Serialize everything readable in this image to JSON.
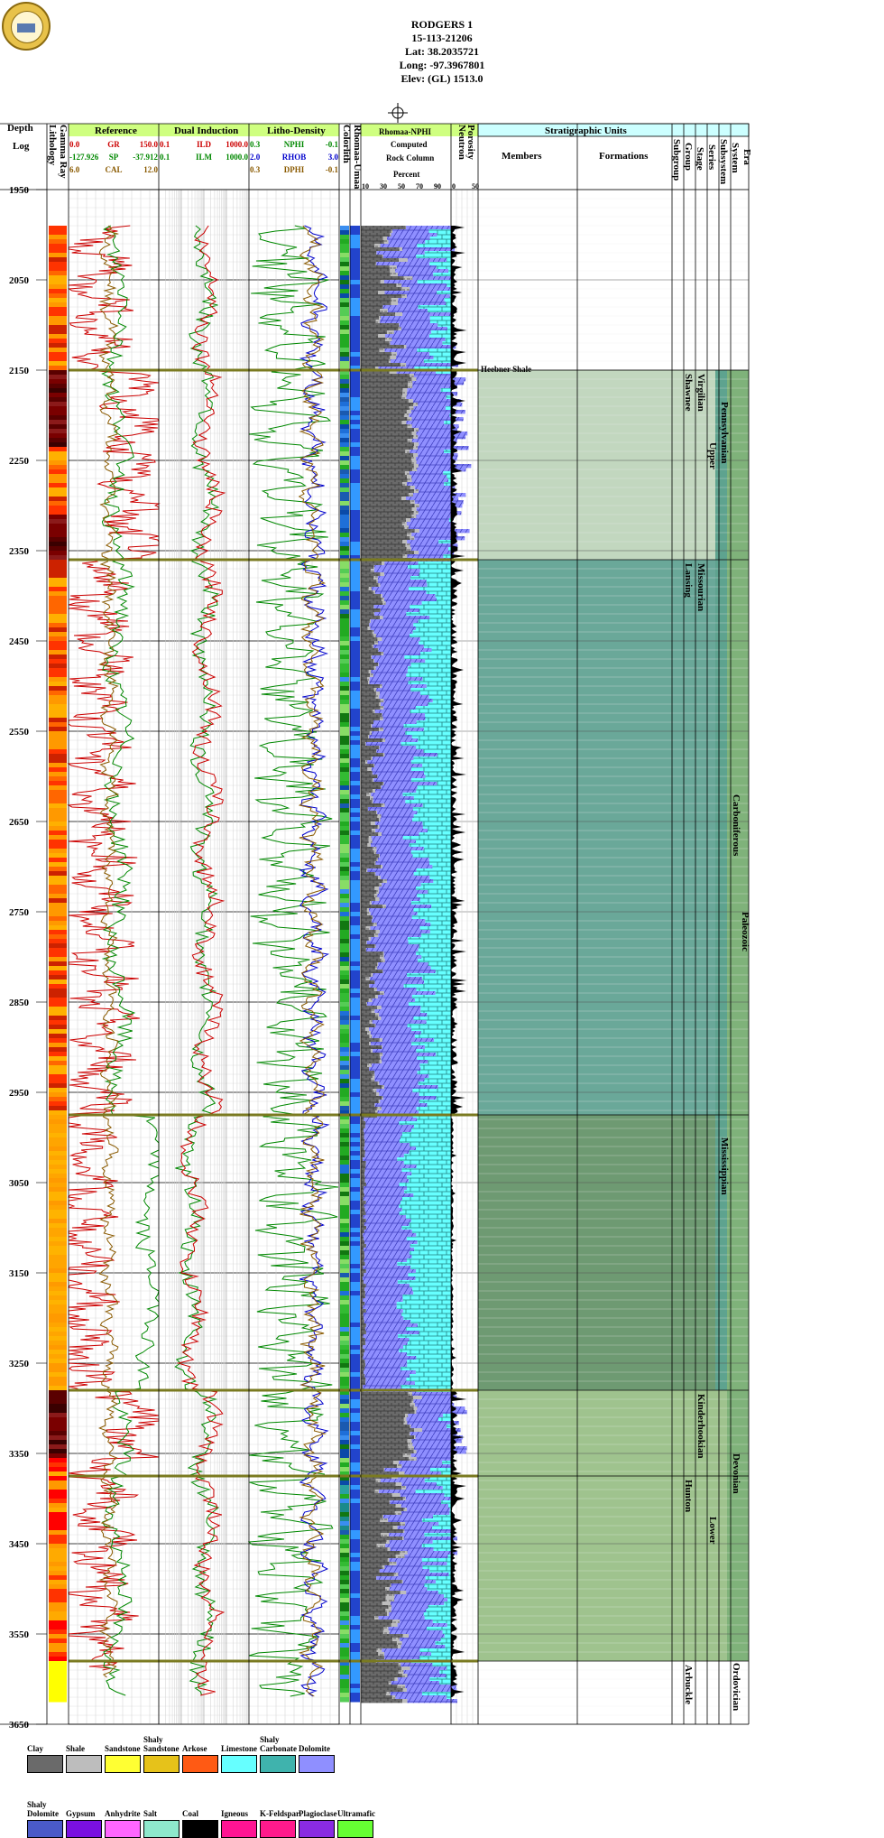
{
  "well": {
    "name": "RODGERS 1",
    "api": "15-113-21206",
    "lat": "Lat: 38.2035721",
    "long": "Long: -97.3967801",
    "elev": "Elev: (GL) 1513.0"
  },
  "columns": {
    "depth_title": "Depth",
    "log_title": "Log",
    "lithology": "Lithology",
    "gamma_ray": "Gamma Ray",
    "reference": "Reference",
    "dual_induction": "Dual Induction",
    "litho_density": "Litho-Density",
    "colorlith": "Colorlith",
    "rhomaa_umaa": "Rhomaa-Umaa",
    "rhomaa_nphi": "Rhomaa-NPHI",
    "computed": "Computed",
    "rock_column": "Rock Column",
    "percent": "Percent",
    "percent_ticks": [
      "10",
      "30",
      "50",
      "70",
      "90"
    ],
    "porosity": "Porosity",
    "neutron": "Neutron",
    "porosity_ticks": [
      "0",
      "50"
    ],
    "strat_title": "Stratigraphic Units",
    "members": "Members",
    "formations": "Formations",
    "subgroup": "Subgroup",
    "group": "Group",
    "stage": "Stage",
    "series": "Series",
    "subsystem": "Subsystem",
    "system": "System",
    "era": "Era"
  },
  "curves": {
    "reference": [
      {
        "left": "0.0",
        "name": "GR",
        "right": "150.0",
        "color": "#cc0000"
      },
      {
        "left": "-127.926",
        "name": "SP",
        "right": "-37.912",
        "color": "#008800"
      },
      {
        "left": "6.0",
        "name": "CAL",
        "right": "12.0",
        "color": "#8a5a00"
      }
    ],
    "dual_induction": [
      {
        "left": "0.1",
        "name": "ILD",
        "right": "1000.0",
        "color": "#cc0000"
      },
      {
        "left": "0.1",
        "name": "ILM",
        "right": "1000.0",
        "color": "#008800"
      }
    ],
    "litho_density": [
      {
        "left": "0.3",
        "name": "NPHI",
        "right": "-0.1",
        "color": "#008800"
      },
      {
        "left": "2.0",
        "name": "RHOB",
        "right": "3.0",
        "color": "#0000cc"
      },
      {
        "left": "0.3",
        "name": "DPHI",
        "right": "-0.1",
        "color": "#8a5a00"
      }
    ]
  },
  "depth_ticks": [
    "1950",
    "2050",
    "2150",
    "2250",
    "2350",
    "2450",
    "2550",
    "2650",
    "2750",
    "2850",
    "2950",
    "3050",
    "3150",
    "3250",
    "3350",
    "3450",
    "3550",
    "3650"
  ],
  "strat": {
    "member": "Heebner Shale",
    "subgroups": [
      "Shawnee",
      "Lansing"
    ],
    "stages": [
      "Virgilian",
      "Missourian",
      "Kinderhookian"
    ],
    "groups": [
      "Hunton",
      "Arbuckle"
    ],
    "series": [
      "Upper",
      "Lower"
    ],
    "subsystems": [
      "Pennsylvanian",
      "Mississippian"
    ],
    "systems": [
      "Carboniferous",
      "Devonian",
      "Ordovician"
    ],
    "era": "Paleozoic"
  },
  "legend": [
    {
      "label": "Clay",
      "color": "#6a6a6a"
    },
    {
      "label": "Shale",
      "color": "#bdbdbd"
    },
    {
      "label": "Sandstone",
      "color": "#ffff33"
    },
    {
      "label": "Shaly Sandstone",
      "color": "#e6c21a"
    },
    {
      "label": "Arkose",
      "color": "#ff5a14"
    },
    {
      "label": "Limestone",
      "color": "#66ffff"
    },
    {
      "label": "Shaly Carbonate",
      "color": "#3fb3ad"
    },
    {
      "label": "Dolomite",
      "color": "#8f8fff"
    },
    {
      "label": "Shaly Dolomite",
      "color": "#4a5ac8"
    },
    {
      "label": "Gypsum",
      "color": "#7a10e0"
    },
    {
      "label": "Anhydrite",
      "color": "#ff66ff"
    },
    {
      "label": "Salt",
      "color": "#8ee8cc"
    },
    {
      "label": "Coal",
      "color": "#000000"
    },
    {
      "label": "Igneous",
      "color": "#ff1493"
    },
    {
      "label": "K-Feldspar",
      "color": "#ff1a8c"
    },
    {
      "label": "Plagioclase",
      "color": "#8a2be2"
    },
    {
      "label": "Ultramafic",
      "color": "#66ff33"
    }
  ]
}
